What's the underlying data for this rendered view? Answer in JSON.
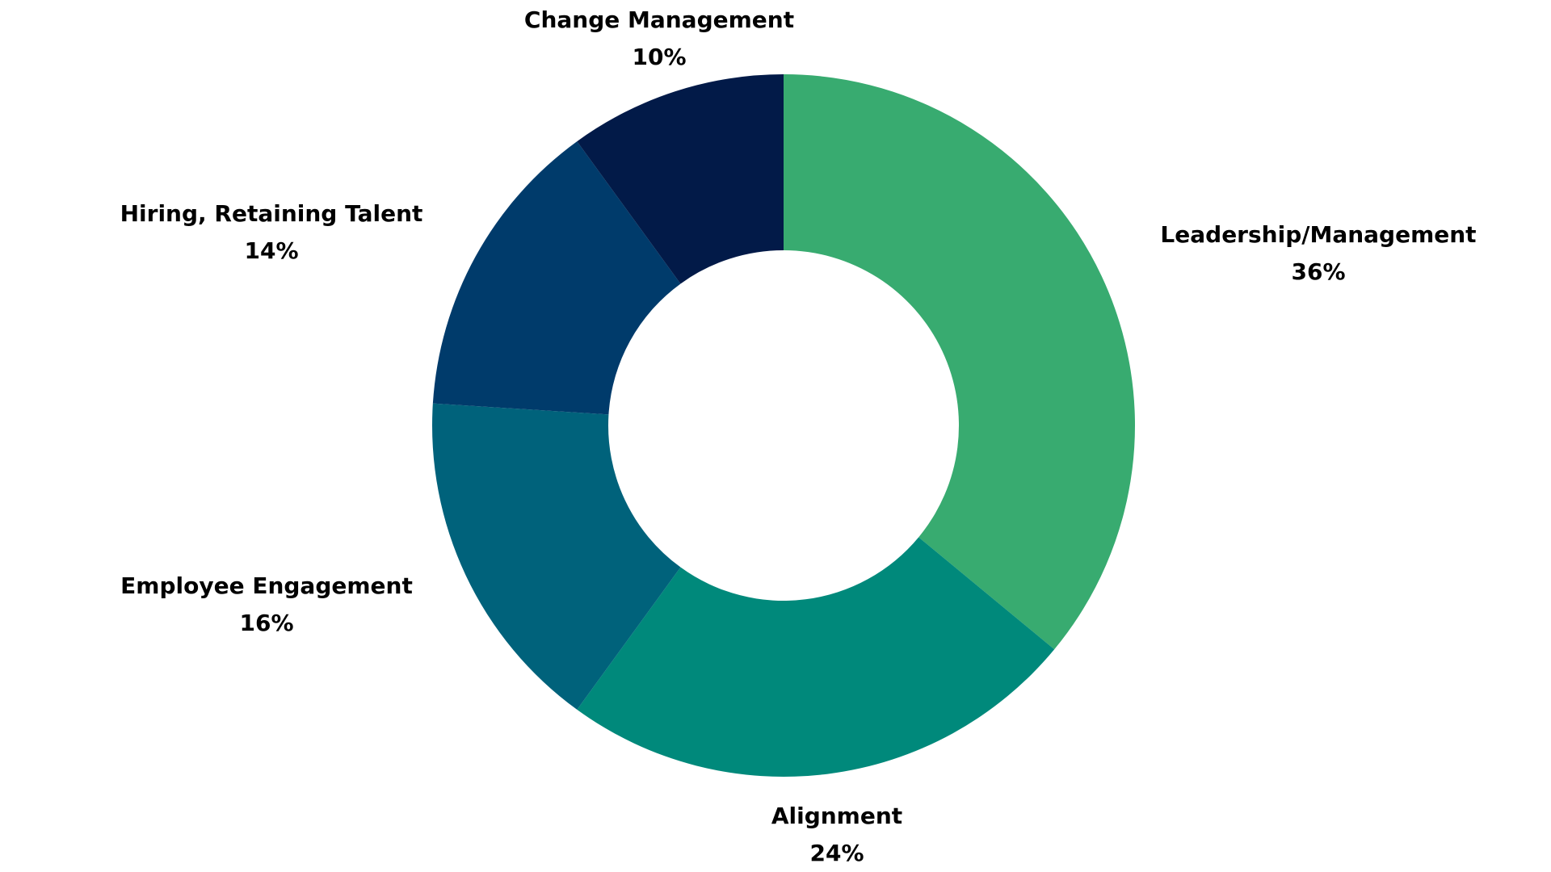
{
  "chart_data": {
    "type": "pie",
    "variant": "donut",
    "title": "",
    "slices": [
      {
        "label": "Leadership/Management",
        "value": 36,
        "value_label": "36%",
        "color": "#38AB70"
      },
      {
        "label": "Alignment",
        "value": 24,
        "value_label": "24%",
        "color": "#00897B"
      },
      {
        "label": "Employee Engagement",
        "value": 16,
        "value_label": "16%",
        "color": "#00627B"
      },
      {
        "label": "Hiring, Retaining Talent",
        "value": 14,
        "value_label": "14%",
        "color": "#003B6B"
      },
      {
        "label": "Change Management",
        "value": 10,
        "value_label": "10%",
        "color": "#021A48"
      }
    ],
    "start_angle": "top",
    "direction": "clockwise",
    "legend": "none",
    "labels": "outside"
  }
}
